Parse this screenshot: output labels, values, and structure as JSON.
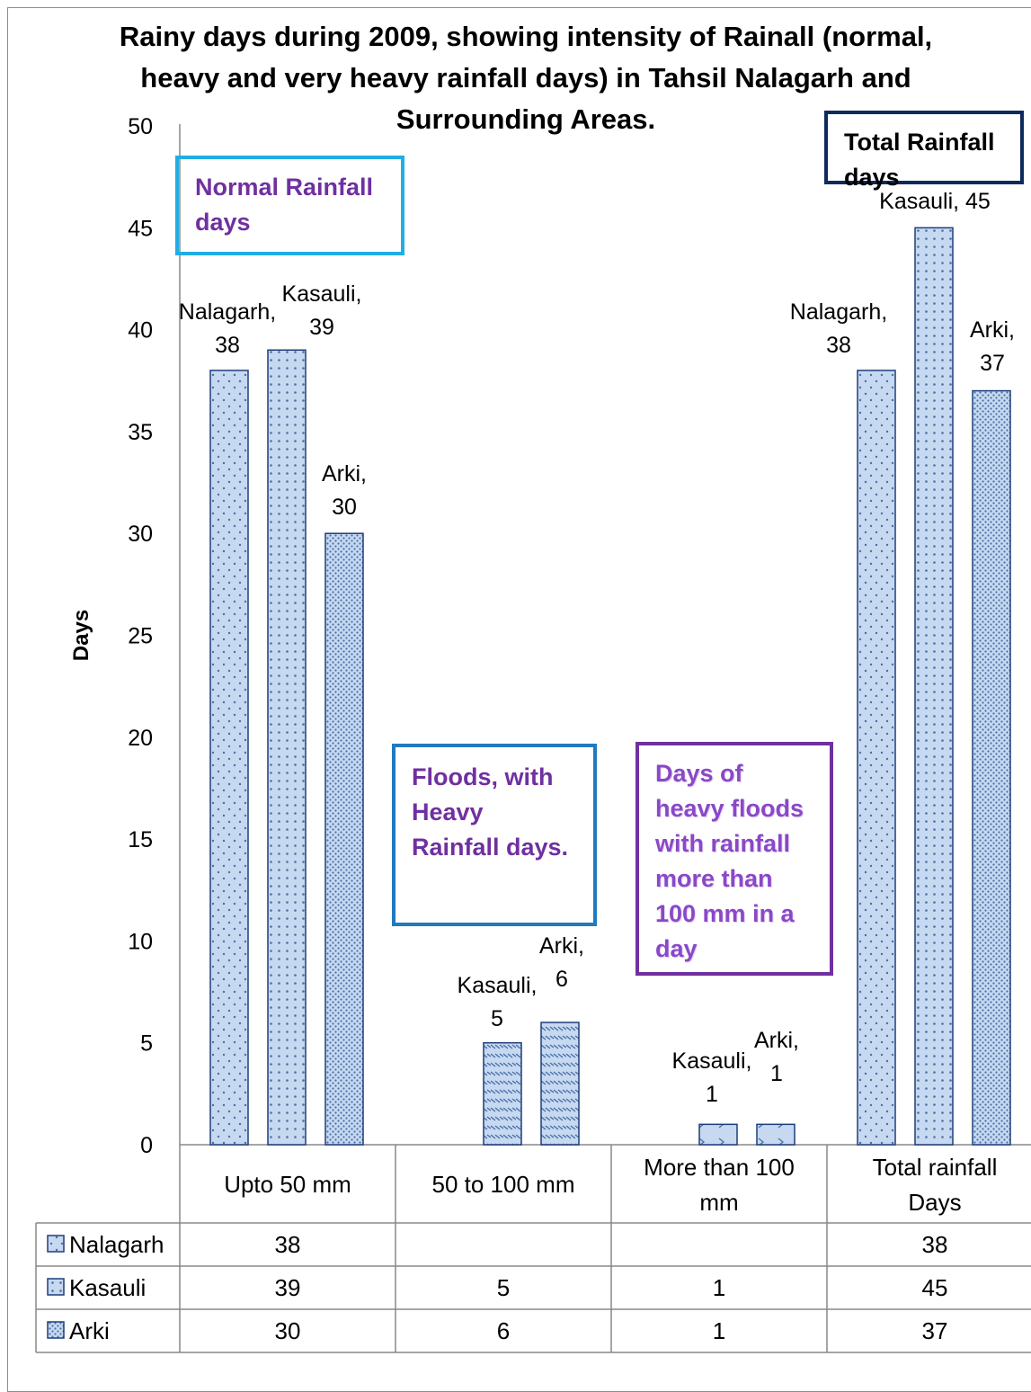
{
  "chart_data": {
    "type": "bar",
    "title": "Rainy days during 2009, showing intensity of Rainall (normal, heavy and very heavy rainfall days) in  Tahsil Nalagarh and Surrounding Areas.",
    "ylabel": "Days",
    "xlabel": "",
    "ylim": [
      0,
      50
    ],
    "yticks": [
      0,
      5,
      10,
      15,
      20,
      25,
      30,
      35,
      40,
      45,
      50
    ],
    "grid": false,
    "categories": [
      "Upto 50 mm",
      "50 to 100 mm",
      "More than 100 mm",
      "Total rainfall Days"
    ],
    "series": [
      {
        "name": "Nalagarh",
        "values": [
          38,
          null,
          null,
          38
        ],
        "pattern": "dots-sparse"
      },
      {
        "name": "Kasauli",
        "values": [
          39,
          5,
          1,
          45
        ],
        "pattern": "dots-grid"
      },
      {
        "name": "Arki",
        "values": [
          30,
          6,
          1,
          37
        ],
        "pattern": "dots-dense"
      }
    ],
    "data_table": {
      "rows": [
        {
          "name": "Nalagarh",
          "cells": [
            "38",
            "",
            "",
            "38"
          ]
        },
        {
          "name": "Kasauli",
          "cells": [
            "39",
            "5",
            "1",
            "45"
          ]
        },
        {
          "name": "Arki",
          "cells": [
            "30",
            "6",
            "1",
            "37"
          ]
        }
      ]
    },
    "annotations": [
      {
        "id": "normal",
        "text": "Normal Rainfall days"
      },
      {
        "id": "floods",
        "text": "Floods, with Heavy Rainfall days."
      },
      {
        "id": "heavy",
        "text": "Days of heavy floods with rainfall more than 100 mm in a day"
      },
      {
        "id": "total",
        "text": "Total Rainfall days"
      }
    ],
    "colors": {
      "bar_fill": "#c6d9f1",
      "bar_stroke": "#1f3d7a",
      "dot": "#4a6fa5"
    }
  }
}
